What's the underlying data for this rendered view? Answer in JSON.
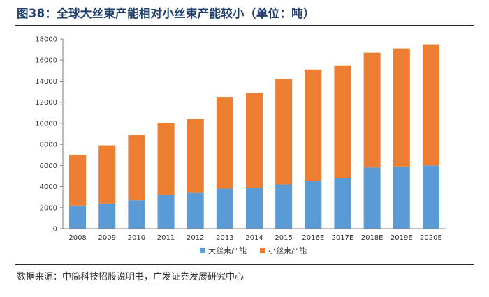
{
  "header": {
    "title": "图38：全球大丝束产能相对小丝束产能较小（单位：吨）"
  },
  "footer": {
    "source": "数据来源：中简科技招股说明书，广发证券发展研究中心"
  },
  "colors": {
    "large_tow": "#5b9bd5",
    "small_tow": "#ed7d31"
  },
  "chart_data": {
    "type": "bar",
    "stacked": true,
    "title": "全球大丝束产能相对小丝束产能较小",
    "xlabel": "",
    "ylabel": "",
    "ylim": [
      0,
      18000
    ],
    "yticks": [
      0,
      2000,
      4000,
      6000,
      8000,
      10000,
      12000,
      14000,
      16000,
      18000
    ],
    "categories": [
      "2008",
      "2009",
      "2010",
      "2011",
      "2012",
      "2013",
      "2014",
      "2015",
      "2016E",
      "2017E",
      "2018E",
      "2019E",
      "2020E"
    ],
    "series": [
      {
        "name": "大丝束产能",
        "color": "#5b9bd5",
        "values": [
          2200,
          2400,
          2700,
          3200,
          3400,
          3800,
          3900,
          4200,
          4500,
          4800,
          5800,
          5900,
          6000
        ]
      },
      {
        "name": "小丝束产能",
        "color": "#ed7d31",
        "values": [
          4800,
          5500,
          6200,
          6800,
          7000,
          8700,
          9000,
          10000,
          10600,
          10700,
          10900,
          11200,
          11500
        ]
      }
    ],
    "grid": false,
    "legend": "bottom-center"
  }
}
